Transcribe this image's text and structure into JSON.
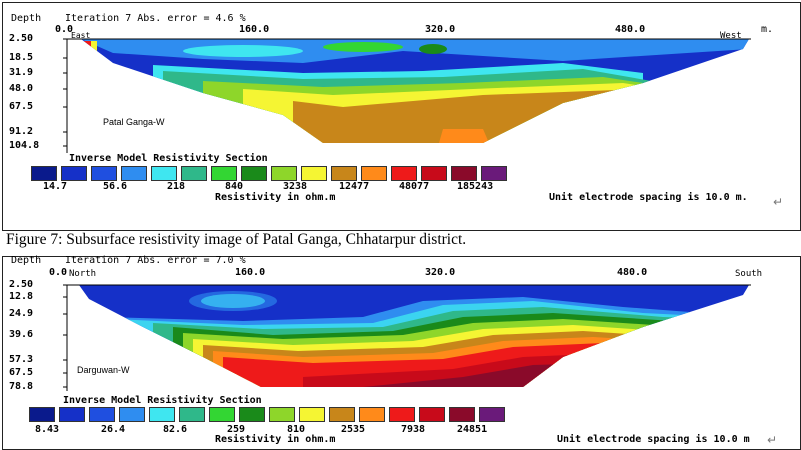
{
  "caption": "Figure 7: Subsurface resistivity image of Patal Ganga, Chhatarpur district.",
  "caption_mark": "↵",
  "sections": [
    {
      "depth_label": "Depth",
      "header": "Iteration 7 Abs. error = 4.6 %",
      "x_ticks": [
        "0.0",
        "160.0",
        "320.0",
        "480.0"
      ],
      "x_unit": "m.",
      "left_dir": "East",
      "right_dir": "West",
      "depths": [
        "2.50",
        "18.5",
        "31.9",
        "48.0",
        "67.5",
        "91.2",
        "104.8"
      ],
      "site": "Patal Ganga-W",
      "legend_title": "Inverse Model Resistivity Section",
      "legend_values": [
        "14.7",
        "56.6",
        "218",
        "840",
        "3238",
        "12477",
        "48077",
        "185243"
      ],
      "legend_unit": "Resistivity in ohm.m",
      "spacing_note": "Unit electrode spacing is 10.0 m.",
      "end_mark": "↵"
    },
    {
      "depth_label": "Depth",
      "header": "Iteration 7 Abs. error = 7.0 %",
      "x_ticks": [
        "0.0",
        "160.0",
        "320.0",
        "480.0"
      ],
      "x_unit": "",
      "left_dir": "North",
      "right_dir": "South",
      "depths": [
        "2.50",
        "12.8",
        "24.9",
        "39.6",
        "57.3",
        "67.5",
        "78.8"
      ],
      "site": "Darguwan-W",
      "legend_title": "Inverse Model Resistivity Section",
      "legend_values": [
        "8.43",
        "26.4",
        "82.6",
        "259",
        "810",
        "2535",
        "7938",
        "24851"
      ],
      "legend_unit": "Resistivity in ohm.m",
      "spacing_note": "Unit electrode spacing is 10.0 m",
      "end_mark": "↵"
    }
  ],
  "palette": [
    "#0a1a8c",
    "#1530c8",
    "#1f4fe0",
    "#2f8df0",
    "#3fe6f0",
    "#2fb88a",
    "#33d633",
    "#1a8a1a",
    "#8ed62a",
    "#f5f533",
    "#c8861a",
    "#ff8a1a",
    "#ee1a1a",
    "#c80a1a",
    "#8a0a2a",
    "#6a1a7a"
  ]
}
